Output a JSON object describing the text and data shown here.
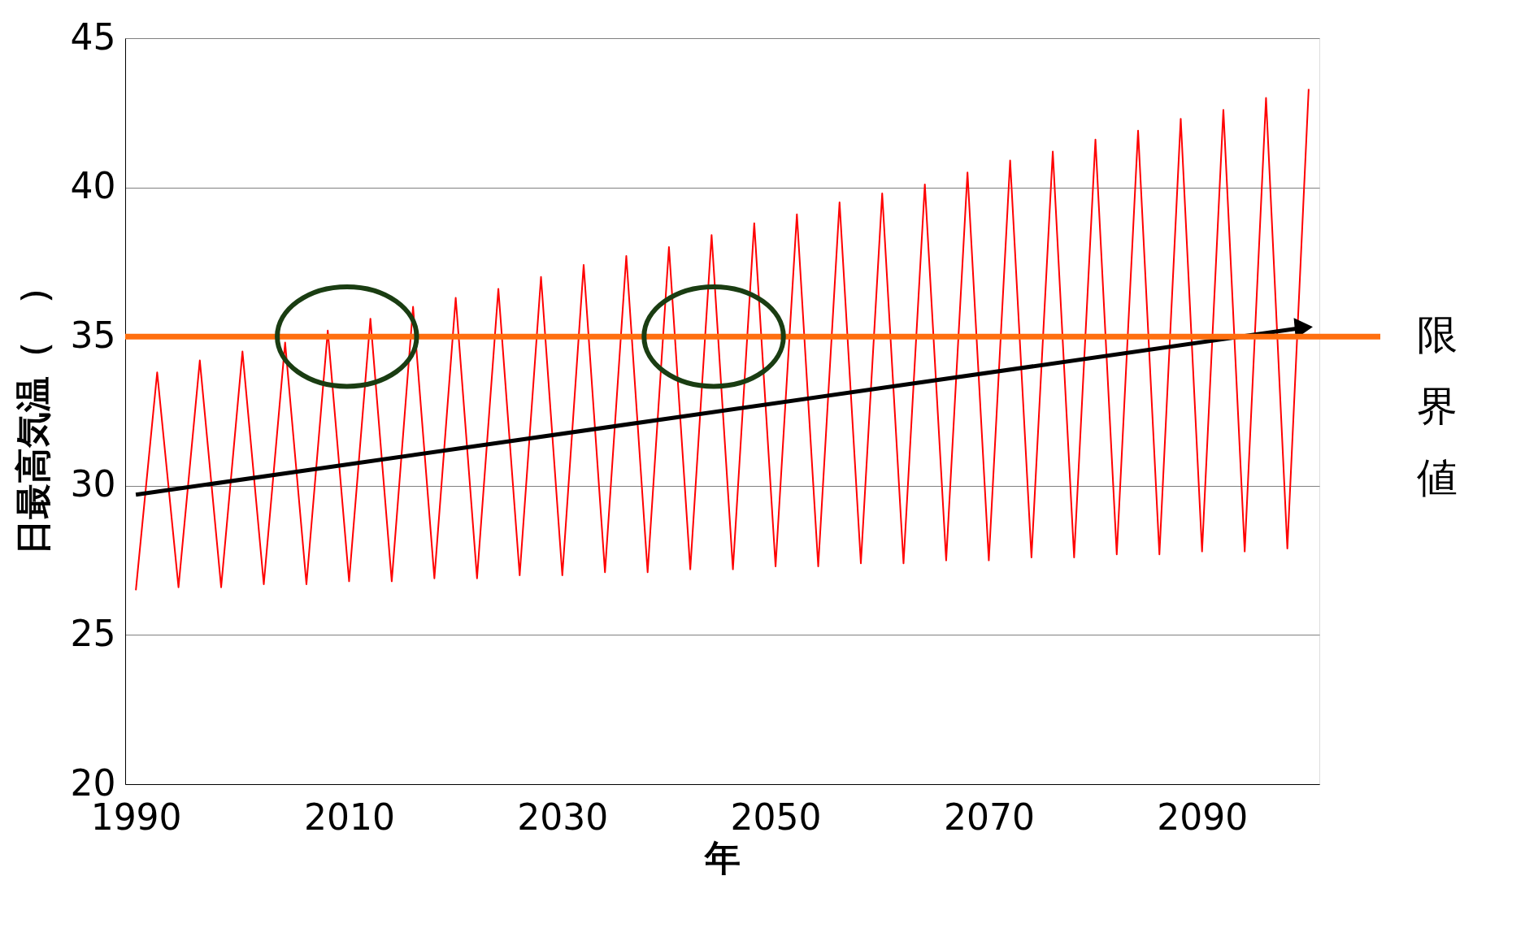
{
  "chart_data": {
    "type": "line",
    "xlabel": "年",
    "ylabel": "日最高気温（　）",
    "x": [
      1990,
      1992,
      1994,
      1996,
      1998,
      2000,
      2002,
      2004,
      2006,
      2008,
      2010,
      2012,
      2014,
      2016,
      2018,
      2020,
      2022,
      2024,
      2026,
      2028,
      2030,
      2032,
      2034,
      2036,
      2038,
      2040,
      2042,
      2044,
      2046,
      2048,
      2050,
      2052,
      2054,
      2056,
      2058,
      2060,
      2062,
      2064,
      2066,
      2068,
      2070,
      2072,
      2074,
      2076,
      2078,
      2080,
      2082,
      2084,
      2086,
      2088,
      2090,
      2092,
      2094,
      2096,
      2098,
      2100
    ],
    "series": [
      {
        "color": "#ff0000",
        "values": [
          26.5,
          33.8,
          26.6,
          34.2,
          26.6,
          34.5,
          26.7,
          34.8,
          26.7,
          35.2,
          26.8,
          35.6,
          26.8,
          36.0,
          26.9,
          36.3,
          26.9,
          36.6,
          27.0,
          37.0,
          27.0,
          37.4,
          27.1,
          37.7,
          27.1,
          38.0,
          27.2,
          38.4,
          27.2,
          38.8,
          27.3,
          39.1,
          27.3,
          39.5,
          27.4,
          39.8,
          27.4,
          40.1,
          27.5,
          40.5,
          27.5,
          40.9,
          27.6,
          41.2,
          27.6,
          41.6,
          27.7,
          41.9,
          27.7,
          42.3,
          27.8,
          42.6,
          27.8,
          43.0,
          27.9,
          43.3
        ]
      },
      {
        "type": "line",
        "color": "#000000",
        "x": [
          1990,
          2099.5
        ],
        "values": [
          29.7,
          35.3
        ]
      }
    ],
    "xlim": [
      1989,
      2101
    ],
    "xticks": [
      1990,
      2010,
      2030,
      2050,
      2070,
      2090
    ],
    "ylim": [
      20,
      45
    ],
    "yticks": [
      20,
      25,
      30,
      35,
      40,
      45
    ],
    "grid": "y",
    "line_style": "solid",
    "ref_lines": [
      {
        "axis": "y",
        "value": 35,
        "label": "限界値",
        "color": "#ff6f0f"
      }
    ]
  }
}
